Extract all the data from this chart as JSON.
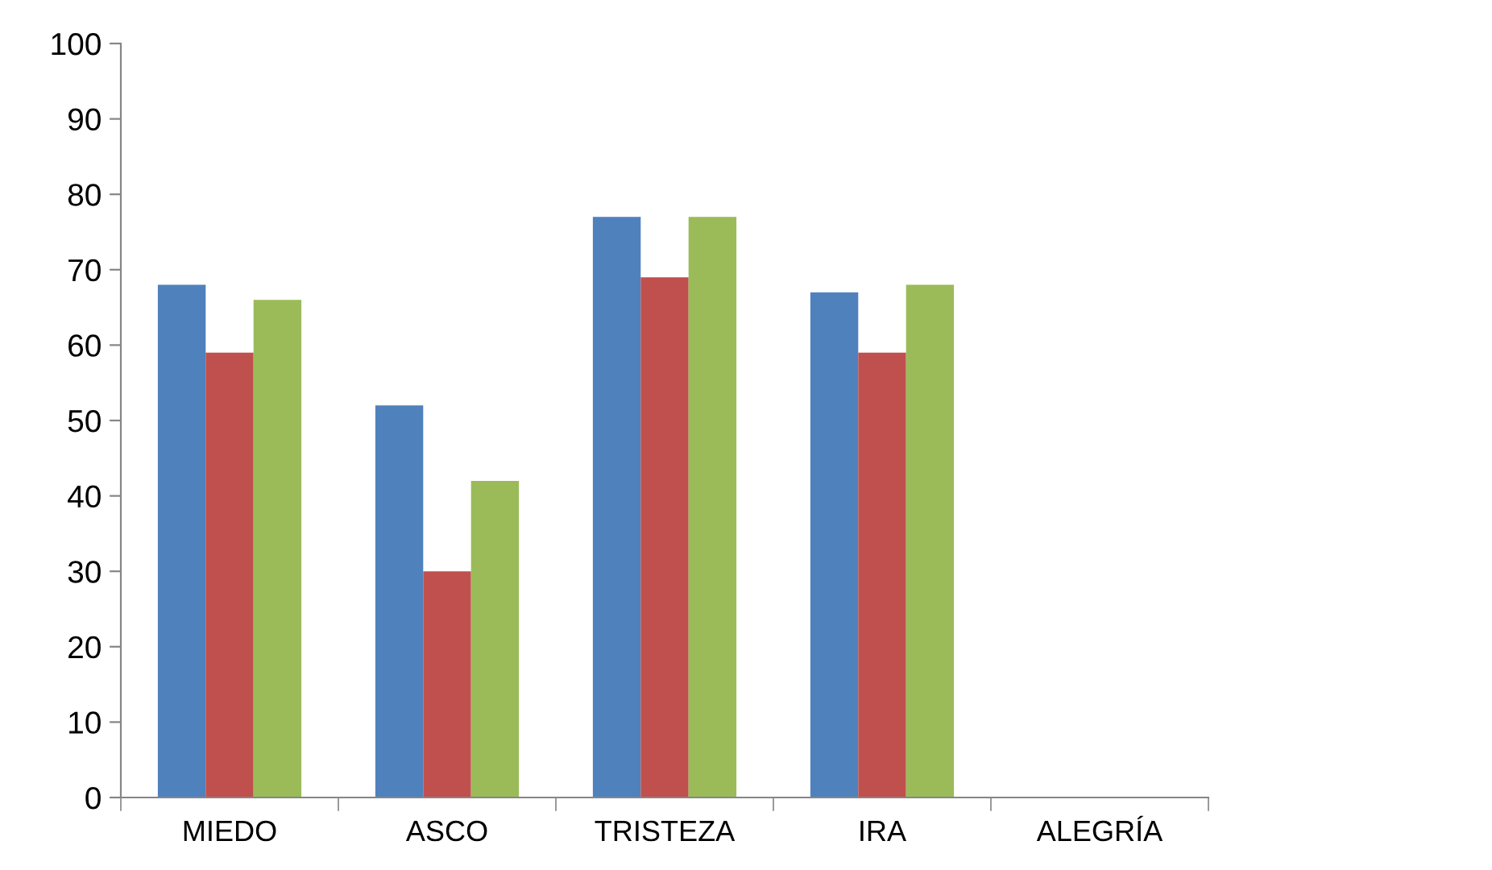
{
  "chart_data": {
    "type": "bar",
    "categories": [
      "MIEDO",
      "ASCO",
      "TRISTEZA",
      "IRA",
      "ALEGRÍA"
    ],
    "series": [
      {
        "color": "#4f81bd",
        "values": [
          68,
          52,
          77,
          67,
          0
        ]
      },
      {
        "color": "#c0504d",
        "values": [
          59,
          30,
          69,
          59,
          0
        ]
      },
      {
        "color": "#9bbb59",
        "values": [
          66,
          42,
          77,
          68,
          0
        ]
      }
    ],
    "ylim": [
      0,
      100
    ],
    "yticks": [
      0,
      10,
      20,
      30,
      40,
      50,
      60,
      70,
      80,
      90,
      100
    ],
    "grid": false
  }
}
